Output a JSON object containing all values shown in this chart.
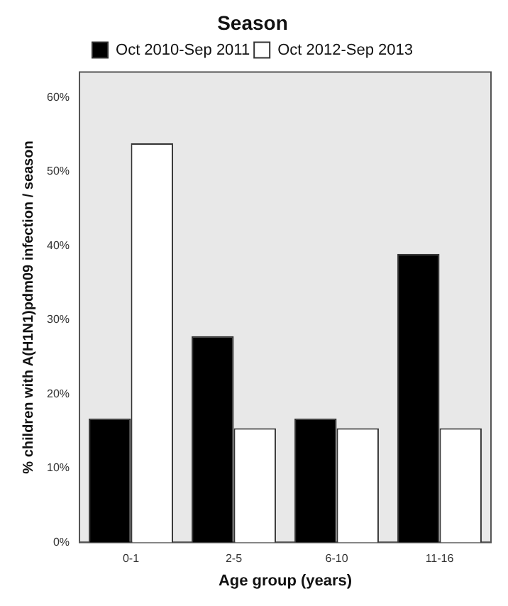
{
  "chart_data": {
    "type": "bar",
    "legend_title": "Season",
    "xlabel": "Age group (years)",
    "ylabel": "% children with A(H1N1)pdm09 infection / season",
    "categories": [
      "0-1",
      "2-5",
      "6-10",
      "11-16"
    ],
    "series": [
      {
        "name": "Oct 2010-Sep 2011",
        "color": "#000000",
        "values": [
          16.7,
          27.8,
          16.7,
          38.9
        ]
      },
      {
        "name": "Oct 2012-Sep 2013",
        "color": "#ffffff",
        "values": [
          53.8,
          15.4,
          15.4,
          15.4
        ]
      }
    ],
    "ylim": [
      0,
      63.4
    ],
    "yticks": [
      {
        "value": 0,
        "label": "0%"
      },
      {
        "value": 10,
        "label": "10%"
      },
      {
        "value": 20,
        "label": "20%"
      },
      {
        "value": 30,
        "label": "30%"
      },
      {
        "value": 40,
        "label": "40%"
      },
      {
        "value": 50,
        "label": "50%"
      },
      {
        "value": 60,
        "label": "60%"
      }
    ],
    "grid": false,
    "legend": "top"
  }
}
